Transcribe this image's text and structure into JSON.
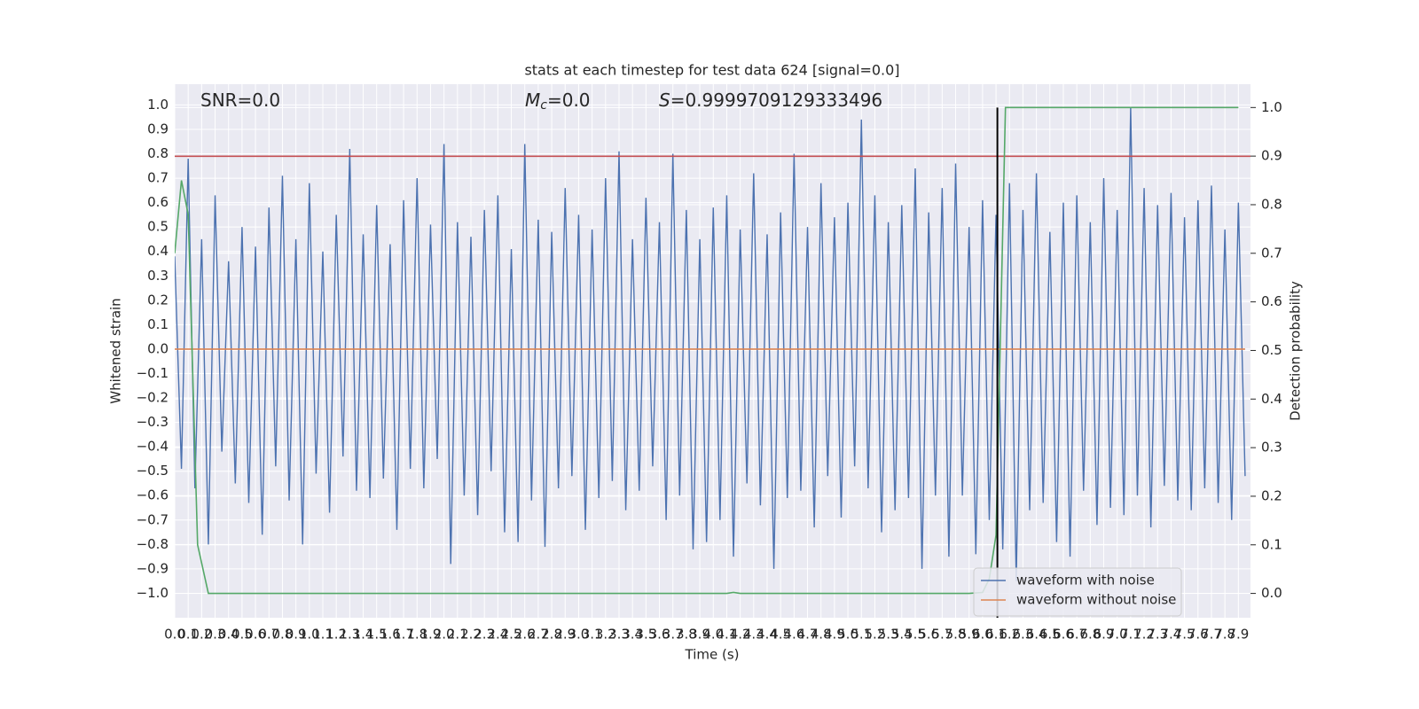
{
  "chart_data": {
    "type": "line",
    "title": "stats at each timestep for test data 624 [signal=0.0]",
    "xlabel": "Time (s)",
    "ylabel": "Whitened strain",
    "y2label": "Detection probability",
    "annotations": [
      {
        "text": "SNR=0.0"
      },
      {
        "symbol": "M",
        "subscript": "c",
        "text": "=0.0"
      },
      {
        "symbol": "S",
        "text": "=0.9999709129333496"
      }
    ],
    "xlim": [
      0,
      7.99
    ],
    "ylim": [
      -1.1,
      1.085
    ],
    "y2lim": [
      -0.05,
      1.048
    ],
    "grid": true,
    "background": "#eaeaf2",
    "legend": "lower right",
    "hline": {
      "value": 0.79,
      "color": "#c44e52"
    },
    "vline": {
      "value": 6.11,
      "color": "#000000"
    },
    "xticks": [
      {
        "value": 0,
        "label": "0.0"
      },
      {
        "value": 0.1,
        "label": "0.1"
      },
      {
        "value": 0.2,
        "label": "0.2"
      },
      {
        "value": 0.3,
        "label": "0.3"
      },
      {
        "value": 0.4,
        "label": "0.4"
      },
      {
        "value": 0.5,
        "label": "0.5"
      },
      {
        "value": 0.6,
        "label": "0.6"
      },
      {
        "value": 0.7,
        "label": "0.7"
      },
      {
        "value": 0.8,
        "label": "0.8"
      },
      {
        "value": 0.9,
        "label": "0.9"
      },
      {
        "value": 1,
        "label": "1.0"
      },
      {
        "value": 1.1,
        "label": "1.1"
      },
      {
        "value": 1.2,
        "label": "1.2"
      },
      {
        "value": 1.3,
        "label": "1.3"
      },
      {
        "value": 1.4,
        "label": "1.4"
      },
      {
        "value": 1.5,
        "label": "1.5"
      },
      {
        "value": 1.6,
        "label": "1.6"
      },
      {
        "value": 1.7,
        "label": "1.7"
      },
      {
        "value": 1.8,
        "label": "1.8"
      },
      {
        "value": 1.9,
        "label": "1.9"
      },
      {
        "value": 2,
        "label": "2.0"
      },
      {
        "value": 2.1,
        "label": "2.1"
      },
      {
        "value": 2.2,
        "label": "2.2"
      },
      {
        "value": 2.3,
        "label": "2.3"
      },
      {
        "value": 2.4,
        "label": "2.4"
      },
      {
        "value": 2.5,
        "label": "2.5"
      },
      {
        "value": 2.6,
        "label": "2.6"
      },
      {
        "value": 2.7,
        "label": "2.7"
      },
      {
        "value": 2.8,
        "label": "2.8"
      },
      {
        "value": 2.9,
        "label": "2.9"
      },
      {
        "value": 3,
        "label": "3.0"
      },
      {
        "value": 3.1,
        "label": "3.1"
      },
      {
        "value": 3.2,
        "label": "3.2"
      },
      {
        "value": 3.3,
        "label": "3.3"
      },
      {
        "value": 3.4,
        "label": "3.4"
      },
      {
        "value": 3.5,
        "label": "3.5"
      },
      {
        "value": 3.6,
        "label": "3.6"
      },
      {
        "value": 3.7,
        "label": "3.7"
      },
      {
        "value": 3.8,
        "label": "3.8"
      },
      {
        "value": 3.9,
        "label": "3.9"
      },
      {
        "value": 4,
        "label": "4.0"
      },
      {
        "value": 4.1,
        "label": "4.1"
      },
      {
        "value": 4.2,
        "label": "4.2"
      },
      {
        "value": 4.3,
        "label": "4.3"
      },
      {
        "value": 4.4,
        "label": "4.4"
      },
      {
        "value": 4.5,
        "label": "4.5"
      },
      {
        "value": 4.6,
        "label": "4.6"
      },
      {
        "value": 4.7,
        "label": "4.7"
      },
      {
        "value": 4.8,
        "label": "4.8"
      },
      {
        "value": 4.9,
        "label": "4.9"
      },
      {
        "value": 5,
        "label": "5.0"
      },
      {
        "value": 5.1,
        "label": "5.1"
      },
      {
        "value": 5.2,
        "label": "5.2"
      },
      {
        "value": 5.3,
        "label": "5.3"
      },
      {
        "value": 5.4,
        "label": "5.4"
      },
      {
        "value": 5.5,
        "label": "5.5"
      },
      {
        "value": 5.6,
        "label": "5.6"
      },
      {
        "value": 5.7,
        "label": "5.7"
      },
      {
        "value": 5.8,
        "label": "5.8"
      },
      {
        "value": 5.9,
        "label": "5.9"
      },
      {
        "value": 6,
        "label": "6.0"
      },
      {
        "value": 6.1,
        "label": "6.1"
      },
      {
        "value": 6.2,
        "label": "6.2"
      },
      {
        "value": 6.3,
        "label": "6.3"
      },
      {
        "value": 6.4,
        "label": "6.4"
      },
      {
        "value": 6.5,
        "label": "6.5"
      },
      {
        "value": 6.6,
        "label": "6.6"
      },
      {
        "value": 6.7,
        "label": "6.7"
      },
      {
        "value": 6.8,
        "label": "6.8"
      },
      {
        "value": 6.9,
        "label": "6.9"
      },
      {
        "value": 7,
        "label": "7.0"
      },
      {
        "value": 7.1,
        "label": "7.1"
      },
      {
        "value": 7.2,
        "label": "7.2"
      },
      {
        "value": 7.3,
        "label": "7.3"
      },
      {
        "value": 7.4,
        "label": "7.4"
      },
      {
        "value": 7.5,
        "label": "7.5"
      },
      {
        "value": 7.6,
        "label": "7.6"
      },
      {
        "value": 7.7,
        "label": "7.7"
      },
      {
        "value": 7.8,
        "label": "7.8"
      },
      {
        "value": 7.9,
        "label": "7.9"
      }
    ],
    "yticks": [
      {
        "value": -1,
        "label": "−1.0"
      },
      {
        "value": -0.9,
        "label": "−0.9"
      },
      {
        "value": -0.8,
        "label": "−0.8"
      },
      {
        "value": -0.7,
        "label": "−0.7"
      },
      {
        "value": -0.6,
        "label": "−0.6"
      },
      {
        "value": -0.5,
        "label": "−0.5"
      },
      {
        "value": -0.4,
        "label": "−0.4"
      },
      {
        "value": -0.3,
        "label": "−0.3"
      },
      {
        "value": -0.2,
        "label": "−0.2"
      },
      {
        "value": -0.1,
        "label": "−0.1"
      },
      {
        "value": 0,
        "label": "0.0"
      },
      {
        "value": 0.1,
        "label": "0.1"
      },
      {
        "value": 0.2,
        "label": "0.2"
      },
      {
        "value": 0.3,
        "label": "0.3"
      },
      {
        "value": 0.4,
        "label": "0.4"
      },
      {
        "value": 0.5,
        "label": "0.5"
      },
      {
        "value": 0.6,
        "label": "0.6"
      },
      {
        "value": 0.7,
        "label": "0.7"
      },
      {
        "value": 0.8,
        "label": "0.8"
      },
      {
        "value": 0.9,
        "label": "0.9"
      },
      {
        "value": 1,
        "label": "1.0"
      }
    ],
    "y2ticks": [
      {
        "value": 0,
        "label": "0.0"
      },
      {
        "value": 0.1,
        "label": "0.1"
      },
      {
        "value": 0.2,
        "label": "0.2"
      },
      {
        "value": 0.3,
        "label": "0.3"
      },
      {
        "value": 0.4,
        "label": "0.4"
      },
      {
        "value": 0.5,
        "label": "0.5"
      },
      {
        "value": 0.6,
        "label": "0.6"
      },
      {
        "value": 0.7,
        "label": "0.7"
      },
      {
        "value": 0.8,
        "label": "0.8"
      },
      {
        "value": 0.9,
        "label": "0.9"
      },
      {
        "value": 1,
        "label": "1.0"
      }
    ],
    "series": [
      {
        "name": "waveform with noise",
        "color": "#4c72b0",
        "x": [
          0,
          0.05,
          0.1,
          0.15,
          0.2,
          0.25,
          0.3,
          0.35,
          0.4,
          0.45,
          0.5,
          0.55,
          0.6,
          0.65,
          0.7,
          0.75,
          0.8,
          0.85,
          0.9,
          0.95,
          1,
          1.05,
          1.1,
          1.15,
          1.2,
          1.25,
          1.3,
          1.35,
          1.4,
          1.45,
          1.5,
          1.55,
          1.6,
          1.65,
          1.7,
          1.75,
          1.8,
          1.85,
          1.9,
          1.95,
          2,
          2.05,
          2.1,
          2.15,
          2.2,
          2.25,
          2.3,
          2.35,
          2.4,
          2.45,
          2.5,
          2.55,
          2.6,
          2.65,
          2.7,
          2.75,
          2.8,
          2.85,
          2.9,
          2.95,
          3,
          3.05,
          3.1,
          3.15,
          3.2,
          3.25,
          3.3,
          3.35,
          3.4,
          3.45,
          3.5,
          3.55,
          3.6,
          3.65,
          3.7,
          3.75,
          3.8,
          3.85,
          3.9,
          3.95,
          4,
          4.05,
          4.1,
          4.15,
          4.2,
          4.25,
          4.3,
          4.35,
          4.4,
          4.45,
          4.5,
          4.55,
          4.6,
          4.65,
          4.7,
          4.75,
          4.8,
          4.85,
          4.9,
          4.95,
          5,
          5.05,
          5.1,
          5.15,
          5.2,
          5.25,
          5.3,
          5.35,
          5.4,
          5.45,
          5.5,
          5.55,
          5.6,
          5.65,
          5.7,
          5.75,
          5.8,
          5.85,
          5.9,
          5.95,
          6,
          6.05,
          6.1,
          6.15,
          6.2,
          6.25,
          6.3,
          6.35,
          6.4,
          6.45,
          6.5,
          6.55,
          6.6,
          6.65,
          6.7,
          6.75,
          6.8,
          6.85,
          6.9,
          6.95,
          7,
          7.05,
          7.1,
          7.15,
          7.2,
          7.25,
          7.3,
          7.35,
          7.4,
          7.45,
          7.5,
          7.55,
          7.6,
          7.65,
          7.7,
          7.75,
          7.8,
          7.85,
          7.9,
          7.95
        ],
        "values": [
          0.38,
          -0.49,
          0.78,
          -0.57,
          0.45,
          -0.8,
          0.63,
          -0.42,
          0.36,
          -0.55,
          0.5,
          -0.63,
          0.42,
          -0.76,
          0.58,
          -0.48,
          0.71,
          -0.62,
          0.45,
          -0.8,
          0.68,
          -0.51,
          0.4,
          -0.67,
          0.55,
          -0.44,
          0.82,
          -0.58,
          0.47,
          -0.61,
          0.59,
          -0.53,
          0.43,
          -0.74,
          0.61,
          -0.49,
          0.7,
          -0.57,
          0.51,
          -0.45,
          0.84,
          -0.88,
          0.52,
          -0.6,
          0.46,
          -0.68,
          0.57,
          -0.5,
          0.63,
          -0.75,
          0.41,
          -0.79,
          0.84,
          -0.62,
          0.53,
          -0.81,
          0.48,
          -0.57,
          0.66,
          -0.52,
          0.55,
          -0.74,
          0.49,
          -0.61,
          0.7,
          -0.54,
          0.81,
          -0.66,
          0.45,
          -0.58,
          0.62,
          -0.48,
          0.52,
          -0.7,
          0.8,
          -0.6,
          0.57,
          -0.82,
          0.45,
          -0.79,
          0.58,
          -0.7,
          0.63,
          -0.85,
          0.49,
          -0.55,
          0.72,
          -0.64,
          0.47,
          -0.9,
          0.56,
          -0.61,
          0.8,
          -0.58,
          0.5,
          -0.73,
          0.68,
          -0.52,
          0.54,
          -0.69,
          0.6,
          -0.48,
          0.94,
          -0.57,
          0.63,
          -0.75,
          0.52,
          -0.66,
          0.59,
          -0.61,
          0.74,
          -0.9,
          0.56,
          -0.6,
          0.66,
          -0.85,
          0.76,
          -0.6,
          0.5,
          -0.84,
          0.61,
          -0.7,
          0.55,
          -0.82,
          0.68,
          -0.95,
          0.57,
          -0.66,
          0.72,
          -0.63,
          0.48,
          -0.79,
          0.6,
          -0.85,
          0.63,
          -0.58,
          0.52,
          -0.72,
          0.7,
          -0.65,
          0.57,
          -0.68,
          0.99,
          -0.6,
          0.66,
          -0.73,
          0.59,
          -0.56,
          0.64,
          -0.62,
          0.54,
          -0.66,
          0.61,
          -0.57,
          0.67,
          -0.63,
          0.49,
          -0.7,
          0.6,
          -0.52
        ]
      },
      {
        "name": "waveform without noise",
        "color": "#dd8452",
        "x": [
          0,
          7.95
        ],
        "values": [
          0,
          0
        ]
      },
      {
        "color": "#55a868",
        "axis": "y2",
        "x": [
          0,
          0.05,
          0.1,
          0.17,
          0.25,
          0.3,
          4.1,
          4.15,
          4.2,
          5.9,
          6.0,
          6.05,
          6.1,
          6.17,
          7.9
        ],
        "values": [
          0.7,
          0.85,
          0.78,
          0.1,
          0.0,
          0.0,
          0.0,
          0.002,
          0.0,
          0.0,
          0.002,
          0.03,
          0.12,
          1.0,
          1.0
        ]
      }
    ]
  }
}
